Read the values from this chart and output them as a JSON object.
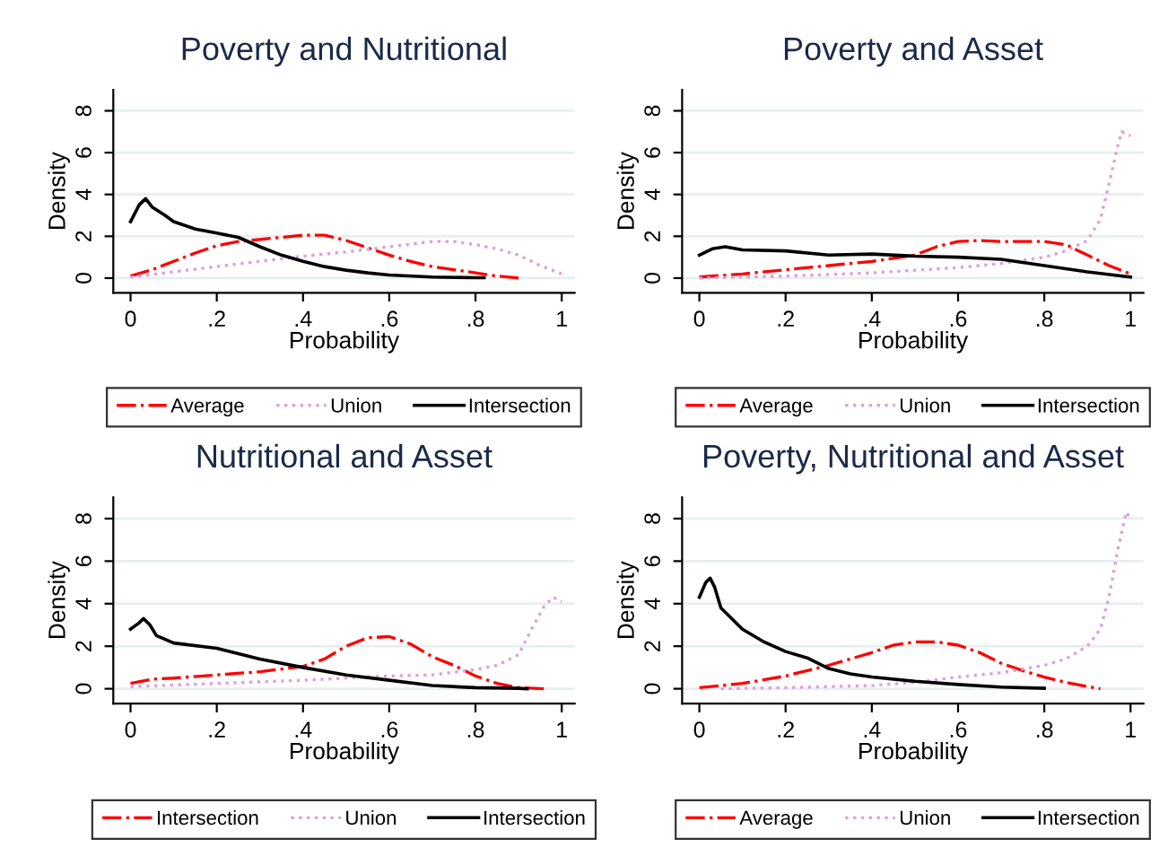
{
  "chart_data": [
    {
      "type": "line",
      "title": "Poverty and Nutritional",
      "xlabel": "Probability",
      "ylabel": "Density",
      "xlim": [
        -0.04,
        1.03
      ],
      "ylim": [
        -0.7,
        9
      ],
      "xticks": [
        0,
        {
          "value": 0.2,
          "label": ".2"
        },
        {
          "value": 0.4,
          "label": ".4"
        },
        {
          "value": 0.6,
          "label": ".6"
        },
        {
          "value": 0.8,
          "label": ".8"
        },
        1
      ],
      "yticks": [
        0,
        2,
        4,
        6,
        8
      ],
      "grid": "y",
      "legend": "bottom",
      "series": [
        {
          "name": "Average",
          "color": "#ff0000",
          "line_style": "dashdot",
          "x": [
            0,
            0.05,
            0.1,
            0.15,
            0.2,
            0.25,
            0.3,
            0.35,
            0.4,
            0.45,
            0.5,
            0.55,
            0.6,
            0.65,
            0.7,
            0.75,
            0.8,
            0.85,
            0.9
          ],
          "values": [
            0.1,
            0.4,
            0.8,
            1.2,
            1.55,
            1.75,
            1.85,
            1.95,
            2.05,
            2.05,
            1.8,
            1.45,
            1.1,
            0.8,
            0.55,
            0.4,
            0.25,
            0.1,
            0.0
          ]
        },
        {
          "name": "Union",
          "color": "#dda0dd",
          "line_style": "dotted",
          "x": [
            0,
            0.1,
            0.2,
            0.3,
            0.4,
            0.5,
            0.6,
            0.7,
            0.75,
            0.8,
            0.85,
            0.9,
            0.95,
            1.0
          ],
          "values": [
            0.05,
            0.3,
            0.55,
            0.8,
            1.05,
            1.25,
            1.5,
            1.75,
            1.75,
            1.6,
            1.4,
            1.1,
            0.6,
            0.2
          ]
        },
        {
          "name": "Intersection",
          "color": "#000000",
          "line_style": "solid",
          "x": [
            0,
            0.02,
            0.035,
            0.05,
            0.08,
            0.1,
            0.15,
            0.2,
            0.25,
            0.3,
            0.35,
            0.4,
            0.45,
            0.5,
            0.55,
            0.6,
            0.7,
            0.8,
            0.82
          ],
          "values": [
            2.7,
            3.5,
            3.8,
            3.4,
            3.0,
            2.7,
            2.35,
            2.15,
            1.95,
            1.5,
            1.1,
            0.8,
            0.55,
            0.38,
            0.25,
            0.15,
            0.05,
            0.02,
            0.02
          ]
        }
      ]
    },
    {
      "type": "line",
      "title": "Poverty and Asset",
      "xlabel": "Probability",
      "ylabel": "Density",
      "xlim": [
        -0.04,
        1.03
      ],
      "ylim": [
        -0.7,
        9
      ],
      "xticks": [
        0,
        {
          "value": 0.2,
          "label": ".2"
        },
        {
          "value": 0.4,
          "label": ".4"
        },
        {
          "value": 0.6,
          "label": ".6"
        },
        {
          "value": 0.8,
          "label": ".8"
        },
        1
      ],
      "yticks": [
        0,
        2,
        4,
        6,
        8
      ],
      "grid": "y",
      "legend": "bottom",
      "series": [
        {
          "name": "Average",
          "color": "#ff0000",
          "line_style": "dashdot",
          "x": [
            0,
            0.1,
            0.2,
            0.3,
            0.4,
            0.5,
            0.55,
            0.6,
            0.65,
            0.7,
            0.8,
            0.85,
            0.9,
            0.95,
            1.0
          ],
          "values": [
            0.05,
            0.2,
            0.4,
            0.6,
            0.8,
            1.1,
            1.5,
            1.75,
            1.8,
            1.75,
            1.75,
            1.6,
            1.1,
            0.6,
            0.2
          ]
        },
        {
          "name": "Union",
          "color": "#dda0dd",
          "line_style": "dotted",
          "x": [
            0,
            0.2,
            0.4,
            0.6,
            0.7,
            0.8,
            0.85,
            0.9,
            0.93,
            0.95,
            0.97,
            0.98,
            1.0
          ],
          "values": [
            0.0,
            0.1,
            0.25,
            0.5,
            0.7,
            1.0,
            1.3,
            1.8,
            2.8,
            4.5,
            6.3,
            7.0,
            6.8
          ]
        },
        {
          "name": "Intersection",
          "color": "#000000",
          "line_style": "solid",
          "x": [
            0,
            0.03,
            0.06,
            0.1,
            0.2,
            0.3,
            0.4,
            0.5,
            0.6,
            0.7,
            0.8,
            0.9,
            1.0
          ],
          "values": [
            1.1,
            1.4,
            1.5,
            1.35,
            1.3,
            1.1,
            1.15,
            1.05,
            1.0,
            0.9,
            0.6,
            0.3,
            0.05
          ]
        }
      ]
    },
    {
      "type": "line",
      "title": "Nutritional and Asset",
      "xlabel": "Probability",
      "ylabel": "Density",
      "xlim": [
        -0.04,
        1.03
      ],
      "ylim": [
        -0.7,
        9
      ],
      "xticks": [
        0,
        {
          "value": 0.2,
          "label": ".2"
        },
        {
          "value": 0.4,
          "label": ".4"
        },
        {
          "value": 0.6,
          "label": ".6"
        },
        {
          "value": 0.8,
          "label": ".8"
        },
        1
      ],
      "yticks": [
        0,
        2,
        4,
        6,
        8
      ],
      "grid": "y",
      "legend": "bottom",
      "series": [
        {
          "name": "Intersection",
          "color": "#ff0000",
          "line_style": "dashdot",
          "x": [
            0,
            0.05,
            0.1,
            0.2,
            0.3,
            0.4,
            0.45,
            0.5,
            0.55,
            0.6,
            0.65,
            0.7,
            0.75,
            0.8,
            0.85,
            0.9,
            0.96
          ],
          "values": [
            0.25,
            0.45,
            0.5,
            0.65,
            0.8,
            1.05,
            1.4,
            2.0,
            2.4,
            2.45,
            2.1,
            1.5,
            1.1,
            0.6,
            0.25,
            0.05,
            0.0
          ]
        },
        {
          "name": "Union",
          "color": "#dda0dd",
          "line_style": "dotted",
          "x": [
            0,
            0.2,
            0.4,
            0.6,
            0.7,
            0.8,
            0.85,
            0.9,
            0.93,
            0.96,
            0.98,
            1.0
          ],
          "values": [
            0.1,
            0.25,
            0.4,
            0.6,
            0.65,
            0.9,
            1.1,
            1.6,
            2.8,
            3.9,
            4.3,
            4.1
          ]
        },
        {
          "name": "Intersection",
          "color": "#000000",
          "line_style": "solid",
          "x": [
            0,
            0.02,
            0.03,
            0.045,
            0.06,
            0.1,
            0.2,
            0.3,
            0.4,
            0.5,
            0.6,
            0.7,
            0.8,
            0.9,
            0.92
          ],
          "values": [
            2.8,
            3.1,
            3.3,
            3.0,
            2.5,
            2.15,
            1.9,
            1.4,
            1.0,
            0.65,
            0.4,
            0.15,
            0.05,
            0.02,
            0.0
          ]
        }
      ]
    },
    {
      "type": "line",
      "title": "Poverty, Nutritional and Asset",
      "xlabel": "Probability",
      "ylabel": "Density",
      "xlim": [
        -0.04,
        1.03
      ],
      "ylim": [
        -0.7,
        9
      ],
      "xticks": [
        0,
        {
          "value": 0.2,
          "label": ".2"
        },
        {
          "value": 0.4,
          "label": ".4"
        },
        {
          "value": 0.6,
          "label": ".6"
        },
        {
          "value": 0.8,
          "label": ".8"
        },
        1
      ],
      "yticks": [
        0,
        2,
        4,
        6,
        8
      ],
      "grid": "y",
      "legend": "bottom",
      "series": [
        {
          "name": "Average",
          "color": "#ff0000",
          "line_style": "dashdot",
          "x": [
            0,
            0.1,
            0.2,
            0.3,
            0.4,
            0.45,
            0.5,
            0.55,
            0.6,
            0.65,
            0.7,
            0.75,
            0.8,
            0.85,
            0.9,
            0.93
          ],
          "values": [
            0.05,
            0.25,
            0.6,
            1.1,
            1.7,
            2.05,
            2.2,
            2.2,
            2.05,
            1.7,
            1.2,
            0.85,
            0.55,
            0.3,
            0.1,
            0.0
          ]
        },
        {
          "name": "Union",
          "color": "#dda0dd",
          "line_style": "dotted",
          "x": [
            0.05,
            0.2,
            0.4,
            0.5,
            0.6,
            0.7,
            0.8,
            0.85,
            0.9,
            0.93,
            0.95,
            0.97,
            0.99,
            1.0
          ],
          "values": [
            0.0,
            0.05,
            0.15,
            0.3,
            0.55,
            0.75,
            1.1,
            1.4,
            2.0,
            2.8,
            4.3,
            6.5,
            8.3,
            8.0
          ]
        },
        {
          "name": "Intersection",
          "color": "#000000",
          "line_style": "solid",
          "x": [
            0,
            0.015,
            0.025,
            0.035,
            0.05,
            0.08,
            0.1,
            0.15,
            0.2,
            0.25,
            0.3,
            0.35,
            0.4,
            0.5,
            0.6,
            0.7,
            0.8
          ],
          "values": [
            4.3,
            5.0,
            5.2,
            4.8,
            3.8,
            3.2,
            2.8,
            2.2,
            1.75,
            1.45,
            0.95,
            0.7,
            0.55,
            0.35,
            0.2,
            0.08,
            0.02
          ]
        }
      ]
    }
  ]
}
